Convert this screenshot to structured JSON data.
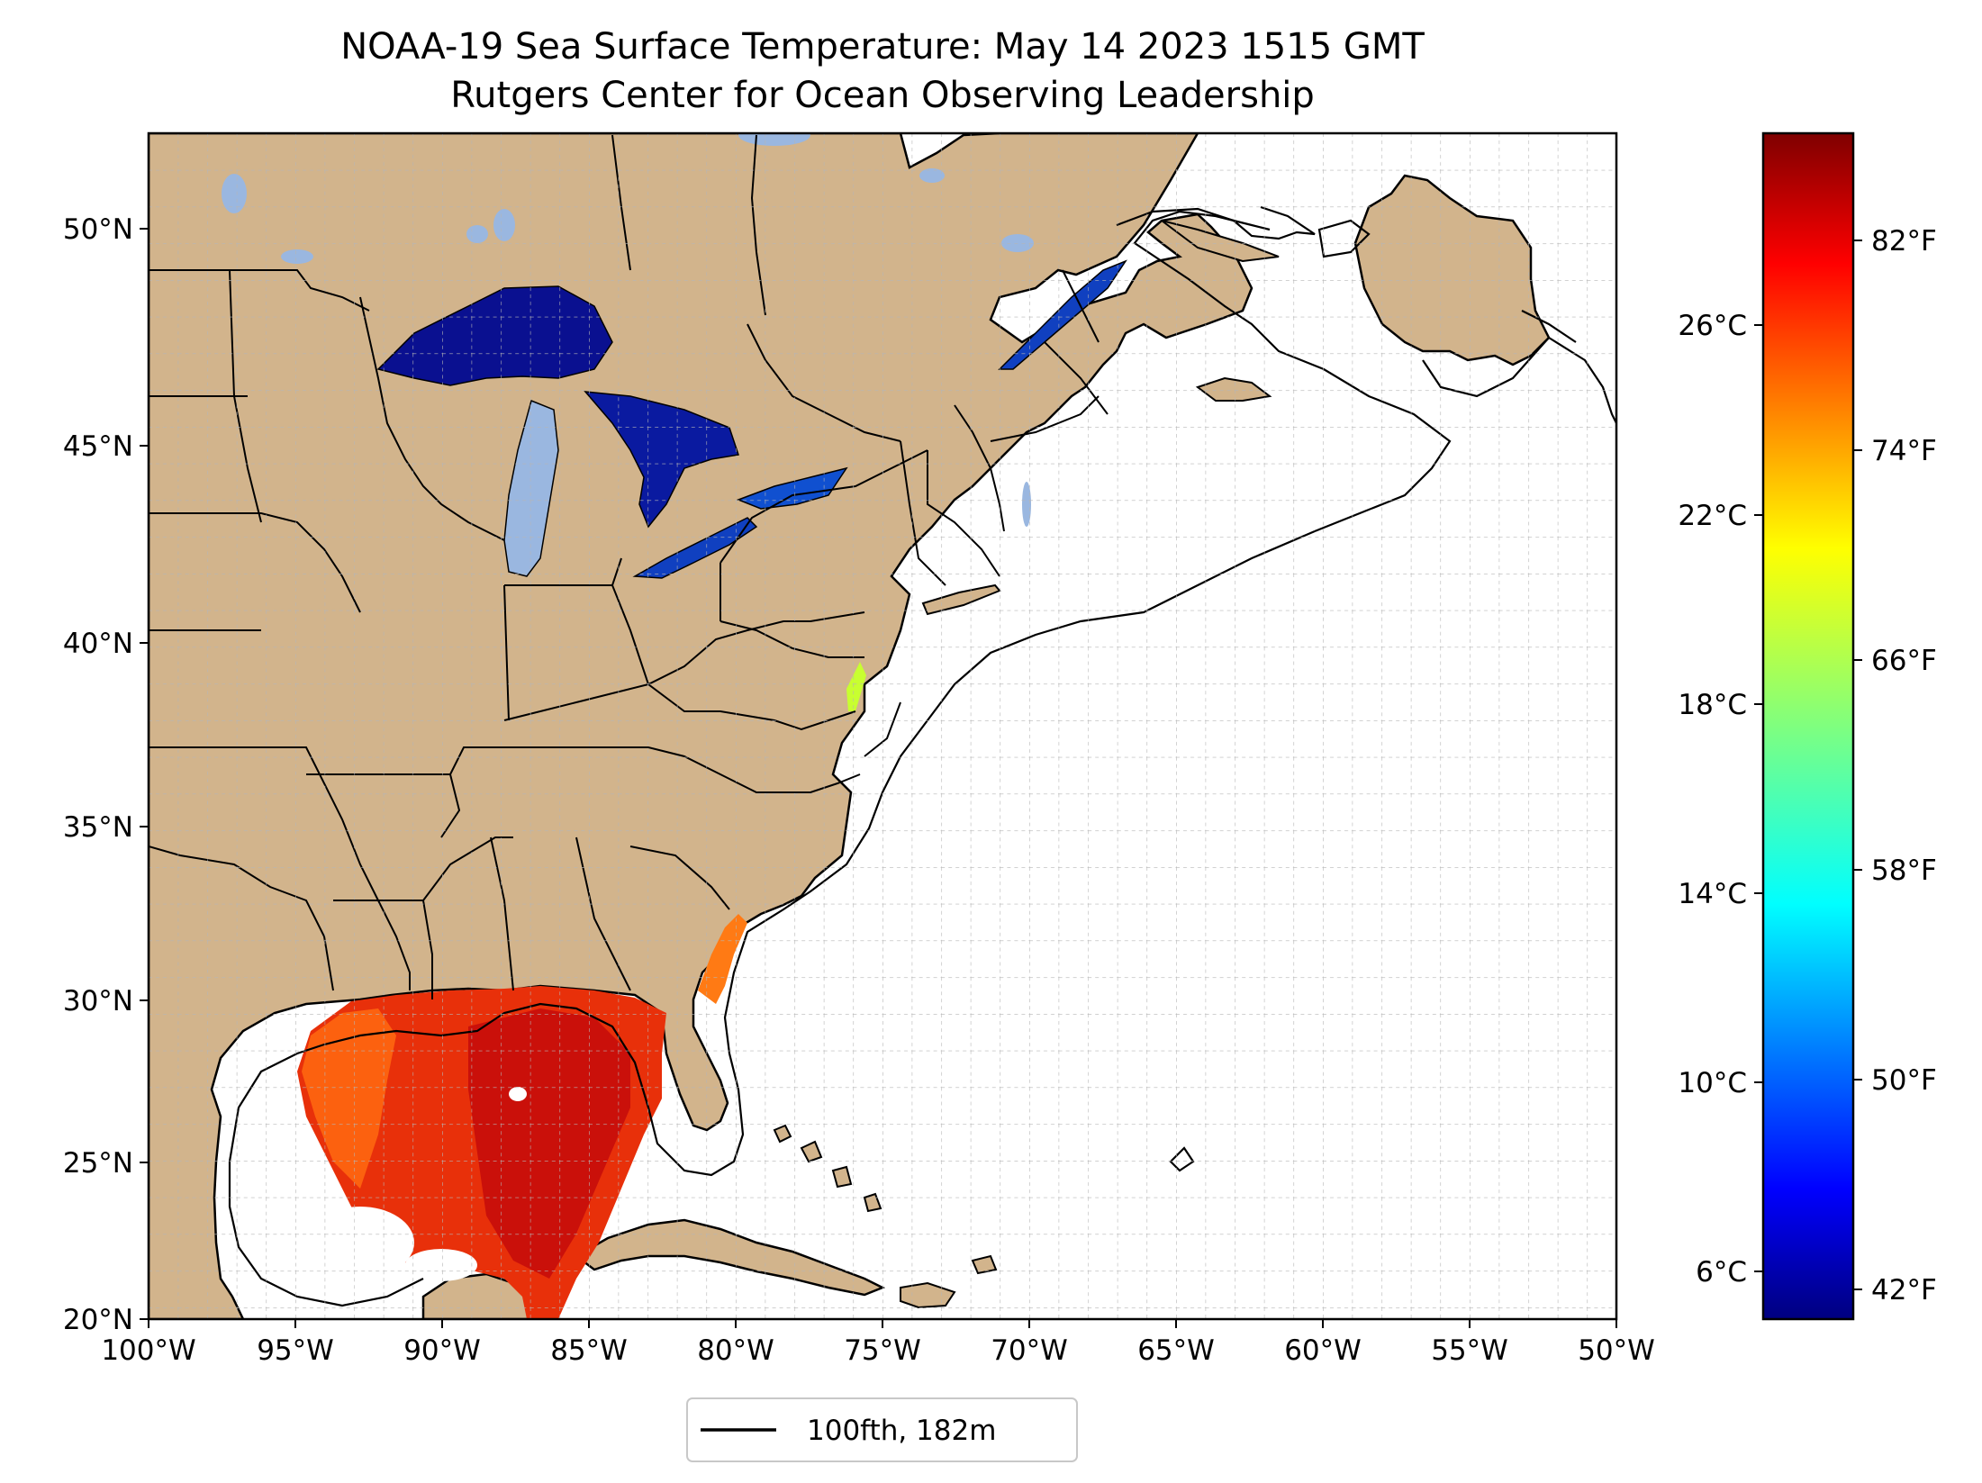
{
  "title": "NOAA-19 Sea Surface Temperature: May 14 2023 1515 GMT",
  "subtitle": "Rutgers Center for Ocean Observing Leadership",
  "map": {
    "lon_range": [
      -100,
      -50
    ],
    "lat_range": [
      20,
      52.3
    ],
    "x_tick_labels": [
      "100°W",
      "95°W",
      "90°W",
      "85°W",
      "80°W",
      "75°W",
      "70°W",
      "65°W",
      "60°W",
      "55°W",
      "50°W"
    ],
    "y_tick_labels": [
      "20°N",
      "25°N",
      "30°N",
      "35°N",
      "40°N",
      "45°N",
      "50°N"
    ],
    "gridlines": "dashed, every 1 degree",
    "land_color": "#d2b48c",
    "lake_color": "#9ab7e0",
    "ocean_color": "#ffffff"
  },
  "legend": {
    "label": "100fth, 182m",
    "line_color": "#000000",
    "placement": "bottom-center"
  },
  "colorbar": {
    "colormap": "jet",
    "colors": [
      "#00007f",
      "#0000ff",
      "#007fff",
      "#00ffff",
      "#7fff7f",
      "#ffff00",
      "#ff7f00",
      "#ff0000",
      "#7f0000"
    ],
    "range_c": [
      5.0,
      30.1
    ],
    "celsius_ticks": [
      "6°C",
      "10°C",
      "14°C",
      "18°C",
      "22°C",
      "26°C"
    ],
    "fahrenheit_ticks": [
      "42°F",
      "50°F",
      "58°F",
      "66°F",
      "74°F",
      "82°F"
    ]
  }
}
